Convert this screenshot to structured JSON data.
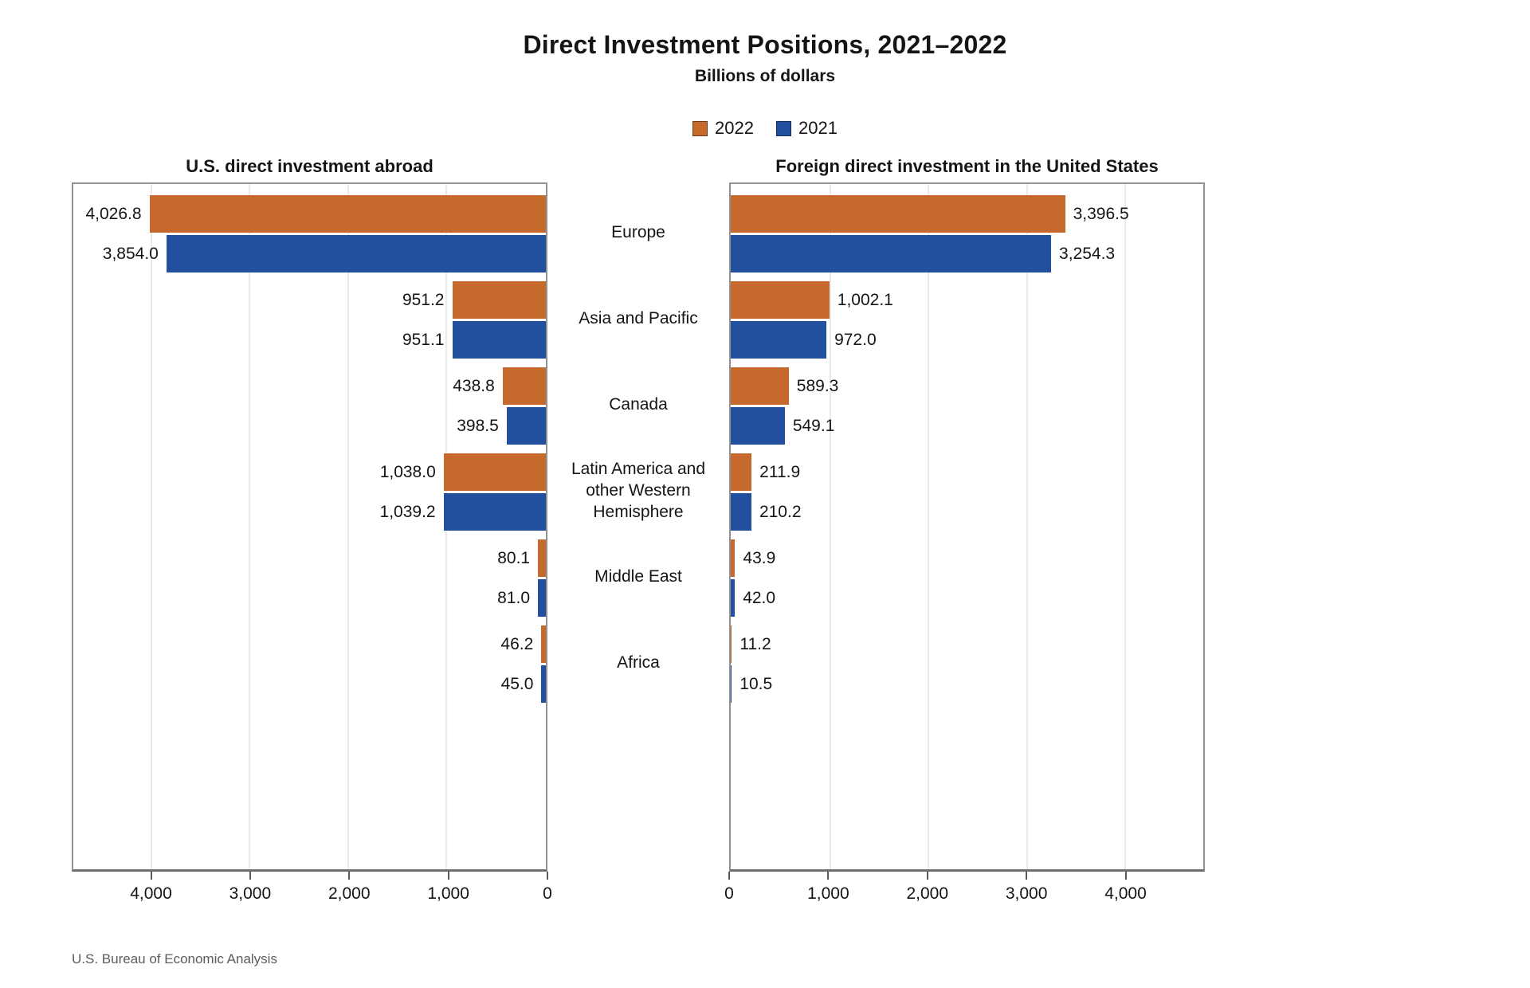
{
  "footer": {
    "source": "U.S. Bureau of Economic Analysis"
  },
  "chart_data": {
    "type": "bar",
    "orientation": "horizontal",
    "title": "Direct Investment Positions, 2021–2022",
    "subtitle": "Billions of dollars",
    "legend": [
      "2022",
      "2021"
    ],
    "series_colors": {
      "2022": "#c6692d",
      "2021": "#23509e"
    },
    "categories": [
      "Europe",
      "Asia and Pacific",
      "Canada",
      "Latin America and other Western Hemisphere",
      "Middle East",
      "Africa"
    ],
    "panels": [
      {
        "title": "U.S. direct investment abroad",
        "direction": "rtl",
        "series": [
          {
            "name": "2022",
            "values": [
              4026.8,
              951.2,
              438.8,
              1038.0,
              80.1,
              46.2
            ]
          },
          {
            "name": "2021",
            "values": [
              3854.0,
              951.1,
              398.5,
              1039.2,
              81.0,
              45.0
            ]
          }
        ]
      },
      {
        "title": "Foreign direct investment in the United States",
        "direction": "ltr",
        "series": [
          {
            "name": "2022",
            "values": [
              3396.5,
              1002.1,
              589.3,
              211.9,
              43.9,
              11.2
            ]
          },
          {
            "name": "2021",
            "values": [
              3254.3,
              972.0,
              549.1,
              210.2,
              42.0,
              10.5
            ]
          }
        ]
      }
    ],
    "axis": {
      "ticks": [
        0,
        1000,
        2000,
        3000,
        4000
      ],
      "tick_labels": [
        "0",
        "1,000",
        "2,000",
        "3,000",
        "4,000"
      ],
      "max": 4800,
      "grid": true,
      "legend_position": "top-center"
    }
  }
}
